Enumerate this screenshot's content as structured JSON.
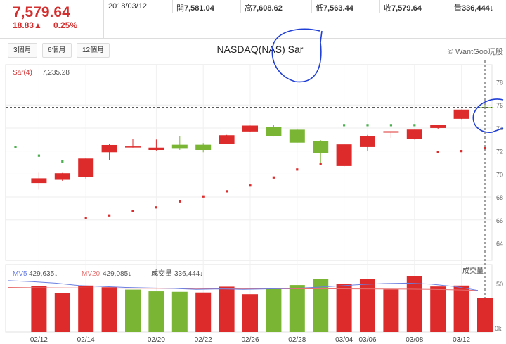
{
  "quote": {
    "price": "7,579.64",
    "change": "18.83▲",
    "change_pct": "0.25%",
    "date": "2018/03/12",
    "open_label": "開",
    "open": "7,581.04",
    "high_label": "高",
    "high": "7,608.62",
    "low_label": "低",
    "low": "7,563.44",
    "close_label": "收",
    "close": "7,579.64",
    "volume_label": "量",
    "volume": "336,444",
    "volume_arrow": "↓"
  },
  "range_buttons": [
    "3個月",
    "6個月",
    "12個月"
  ],
  "chart_title": "NASDAQ(NAS) Sar",
  "brand": "© WantGoo玩股",
  "colors": {
    "up": "#dd2a2a",
    "down": "#7ab533",
    "sar_up": "#dd2a2a",
    "sar_down": "#4caf50",
    "ma5": "#6b7fe0",
    "ma20": "#e87070",
    "price_text": "#d32f2f"
  },
  "chart_data": [
    {
      "type": "candlestick",
      "title": "NASDAQ(NAS) Sar",
      "indicator_label": "Sar(4)",
      "indicator_value": "7,235.28",
      "ylim": [
        6250,
        7950
      ],
      "y_ticks": [
        "78",
        "76",
        "74",
        "72",
        "70",
        "68",
        "66",
        "64"
      ],
      "x_ticks": [
        "02/12",
        "02/14",
        "02/20",
        "02/22",
        "02/26",
        "02/28",
        "03/04",
        "03/06",
        "03/08",
        "03/12"
      ],
      "x_tick_index": [
        1,
        3,
        6,
        8,
        10,
        12,
        14,
        15,
        17,
        19
      ],
      "series": [
        {
          "date": "02/09",
          "open": null,
          "high": null,
          "low": null,
          "close": null
        },
        {
          "date": "02/12",
          "open": 6922,
          "high": 7012,
          "low": 6865,
          "close": 6963
        },
        {
          "date": "02/13",
          "open": 6950,
          "high": 7010,
          "low": 6935,
          "close": 7007
        },
        {
          "date": "02/14",
          "open": 6975,
          "high": 7140,
          "low": 6960,
          "close": 7135
        },
        {
          "date": "02/15",
          "open": 7190,
          "high": 7260,
          "low": 7120,
          "close": 7253
        },
        {
          "date": "02/16",
          "open": 7232,
          "high": 7308,
          "low": 7230,
          "close": 7240
        },
        {
          "date": "02/20",
          "open": 7210,
          "high": 7300,
          "low": 7205,
          "close": 7230
        },
        {
          "date": "02/21",
          "open": 7255,
          "high": 7330,
          "low": 7210,
          "close": 7220
        },
        {
          "date": "02/22",
          "open": 7255,
          "high": 7270,
          "low": 7190,
          "close": 7210
        },
        {
          "date": "02/23",
          "open": 7265,
          "high": 7340,
          "low": 7262,
          "close": 7337
        },
        {
          "date": "02/26",
          "open": 7370,
          "high": 7422,
          "low": 7363,
          "close": 7421
        },
        {
          "date": "02/27",
          "open": 7410,
          "high": 7425,
          "low": 7326,
          "close": 7330
        },
        {
          "date": "02/28",
          "open": 7385,
          "high": 7395,
          "low": 7273,
          "close": 7273
        },
        {
          "date": "03/01",
          "open": 7285,
          "high": 7295,
          "low": 7100,
          "close": 7180
        },
        {
          "date": "03/02",
          "open": 7070,
          "high": 7260,
          "low": 7065,
          "close": 7258
        },
        {
          "date": "03/05",
          "open": 7235,
          "high": 7340,
          "low": 7200,
          "close": 7330
        },
        {
          "date": "03/06",
          "open": 7360,
          "high": 7370,
          "low": 7315,
          "close": 7372
        },
        {
          "date": "03/07",
          "open": 7303,
          "high": 7385,
          "low": 7300,
          "close": 7386
        },
        {
          "date": "03/08",
          "open": 7400,
          "high": 7430,
          "low": 7392,
          "close": 7427
        },
        {
          "date": "03/09",
          "open": 7480,
          "high": 7560,
          "low": 7478,
          "close": 7560
        },
        {
          "date": "03/12",
          "open": 7581,
          "high": 7608,
          "low": 7563,
          "close": 7580
        }
      ],
      "sar": [
        {
          "i": 0,
          "v": 7235,
          "trend": "down"
        },
        {
          "i": 1,
          "v": 7160,
          "trend": "down"
        },
        {
          "i": 2,
          "v": 7110,
          "trend": "down"
        },
        {
          "i": 3,
          "v": 6615,
          "trend": "up"
        },
        {
          "i": 4,
          "v": 6640,
          "trend": "up"
        },
        {
          "i": 5,
          "v": 6680,
          "trend": "up"
        },
        {
          "i": 6,
          "v": 6710,
          "trend": "up"
        },
        {
          "i": 7,
          "v": 6762,
          "trend": "up"
        },
        {
          "i": 8,
          "v": 6805,
          "trend": "up"
        },
        {
          "i": 9,
          "v": 6850,
          "trend": "up"
        },
        {
          "i": 10,
          "v": 6900,
          "trend": "up"
        },
        {
          "i": 11,
          "v": 6970,
          "trend": "up"
        },
        {
          "i": 12,
          "v": 7040,
          "trend": "up"
        },
        {
          "i": 13,
          "v": 7090,
          "trend": "up"
        },
        {
          "i": 14,
          "v": 7425,
          "trend": "down"
        },
        {
          "i": 15,
          "v": 7425,
          "trend": "down"
        },
        {
          "i": 16,
          "v": 7425,
          "trend": "down"
        },
        {
          "i": 17,
          "v": 7425,
          "trend": "down"
        },
        {
          "i": 18,
          "v": 7190,
          "trend": "up"
        },
        {
          "i": 19,
          "v": 7200,
          "trend": "up"
        },
        {
          "i": 20,
          "v": 7225,
          "trend": "up"
        }
      ],
      "last_price_line": 7579.64
    },
    {
      "type": "bar",
      "title": "成交量",
      "ma5_label": "MV5",
      "ma5_value": "429,635",
      "ma5_arrow": "↓",
      "ma20_label": "MV20",
      "ma20_value": "429,085",
      "ma20_arrow": "↓",
      "volume_label": "成交量",
      "volume_value": "336,444",
      "volume_arrow": "↓",
      "y_ticks": [
        "50",
        "0k"
      ],
      "ylim": [
        0,
        580000
      ],
      "values": [
        null,
        478000,
        400000,
        480000,
        462000,
        438000,
        420000,
        415000,
        408000,
        468000,
        390000,
        445000,
        485000,
        545000,
        495000,
        548000,
        440000,
        580000,
        470000,
        480000,
        350000
      ],
      "directions": [
        null,
        "up",
        "up",
        "up",
        "up",
        "down",
        "down",
        "down",
        "up",
        "up",
        "up",
        "down",
        "down",
        "down",
        "up",
        "up",
        "up",
        "up",
        "up",
        "up",
        "up"
      ],
      "ma5": [
        530000,
        520000,
        505000,
        480000,
        470000,
        460000,
        455000,
        450000,
        440000,
        445000,
        440000,
        445000,
        450000,
        460000,
        475000,
        490000,
        500000,
        505000,
        495000,
        470000,
        430000
      ],
      "ma20": [
        460000,
        458000,
        456000,
        455000,
        453000,
        452000,
        451000,
        450000,
        449000,
        448000,
        447000,
        447000,
        446000,
        446000,
        446000,
        445000,
        444000,
        443000,
        440000,
        436000,
        430000
      ]
    }
  ]
}
